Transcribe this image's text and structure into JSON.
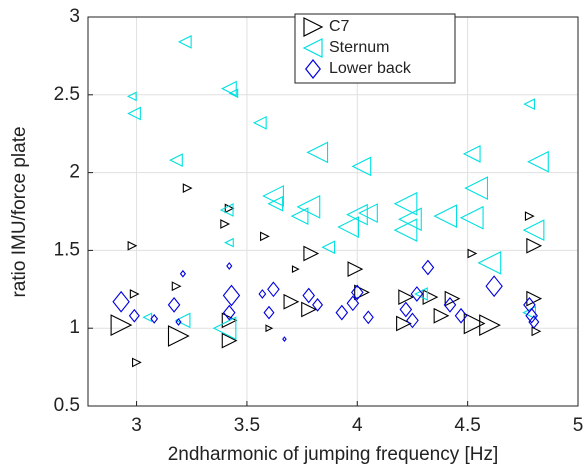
{
  "chart_data": {
    "type": "scatter",
    "xlabel": "2ndharmonic of jumping frequency  [Hz]",
    "ylabel": "ratio IMU/force plate",
    "xlim": [
      2.78,
      5
    ],
    "ylim": [
      0.5,
      3
    ],
    "xticks": [
      3,
      3.5,
      4,
      4.5,
      5
    ],
    "yticks": [
      0.5,
      1,
      1.5,
      2,
      2.5,
      3
    ],
    "grid": true,
    "legend": "top",
    "series": [
      {
        "name": "C7",
        "color": "#000000",
        "marker": "triangle-right",
        "x": [
          2.93,
          2.98,
          2.99,
          3.0,
          3.19,
          3.23,
          3.18,
          3.4,
          3.42,
          3.42,
          3.42,
          3.58,
          3.6,
          3.7,
          3.72,
          3.79,
          3.78,
          3.99,
          4.02,
          4.21,
          4.22,
          4.33,
          4.38,
          4.43,
          4.52,
          4.53,
          4.6,
          4.78,
          4.8,
          4.8,
          4.81
        ],
        "values": [
          1.02,
          1.53,
          1.22,
          0.78,
          0.95,
          1.9,
          1.27,
          1.67,
          1.77,
          0.92,
          1.05,
          1.59,
          1.0,
          1.17,
          1.38,
          1.48,
          1.12,
          1.38,
          1.23,
          1.03,
          1.2,
          1.2,
          1.08,
          1.19,
          1.48,
          1.03,
          1.02,
          1.72,
          1.53,
          1.19,
          0.98
        ],
        "sizes": [
          10,
          4,
          4,
          4,
          10,
          4,
          4,
          4,
          4,
          7,
          7,
          4,
          3,
          7,
          3,
          7,
          7,
          7,
          7,
          7,
          7,
          7,
          7,
          7,
          4,
          10,
          10,
          4,
          7,
          7,
          4
        ]
      },
      {
        "name": "Sternum",
        "color": "#00e0e0",
        "marker": "triangle-left",
        "x": [
          2.98,
          2.99,
          3.05,
          3.18,
          3.22,
          3.21,
          3.42,
          3.44,
          3.41,
          3.42,
          3.4,
          3.56,
          3.62,
          3.63,
          3.74,
          3.78,
          3.82,
          3.87,
          3.96,
          4.02,
          4.0,
          4.05,
          4.22,
          4.24,
          4.22,
          4.29,
          4.4,
          4.52,
          4.54,
          4.52,
          4.6,
          4.78,
          4.82,
          4.8,
          4.78
        ],
        "values": [
          2.49,
          2.38,
          1.07,
          2.08,
          2.84,
          1.05,
          2.54,
          2.51,
          1.76,
          1.55,
          1.0,
          2.32,
          1.85,
          1.8,
          1.72,
          1.78,
          2.13,
          1.52,
          1.65,
          2.04,
          1.73,
          1.74,
          1.8,
          1.7,
          1.63,
          1.22,
          1.72,
          1.71,
          1.9,
          2.12,
          1.42,
          2.44,
          2.07,
          1.63,
          1.1
        ],
        "sizes": [
          4,
          6,
          4,
          6,
          6,
          7,
          7,
          4,
          6,
          4,
          11,
          6,
          10,
          7,
          8,
          11,
          10,
          6,
          10,
          9,
          10,
          9,
          11,
          11,
          11,
          6,
          11,
          11,
          11,
          8,
          11,
          5,
          10,
          10,
          6
        ]
      },
      {
        "name": "Lower back",
        "color": "#0000e0",
        "marker": "diamond",
        "x": [
          2.93,
          2.99,
          3.08,
          3.17,
          3.19,
          3.21,
          3.42,
          3.43,
          3.42,
          3.57,
          3.62,
          3.6,
          3.67,
          3.78,
          3.82,
          3.93,
          4.0,
          3.98,
          4.05,
          4.22,
          4.25,
          4.27,
          4.32,
          4.42,
          4.47,
          4.62,
          4.79,
          4.8,
          4.78
        ],
        "values": [
          1.17,
          1.08,
          1.06,
          1.15,
          1.04,
          1.35,
          1.4,
          1.21,
          1.1,
          1.22,
          1.25,
          1.1,
          0.93,
          1.21,
          1.15,
          1.1,
          1.23,
          1.16,
          1.07,
          1.12,
          1.05,
          1.22,
          1.39,
          1.15,
          1.08,
          1.27,
          1.08,
          1.04,
          1.15
        ],
        "sizes": [
          10,
          6,
          4,
          7,
          3,
          3,
          3,
          10,
          7,
          4,
          7,
          6,
          2,
          7,
          6,
          7,
          7,
          7,
          6,
          7,
          7,
          7,
          7,
          7,
          7,
          10,
          7,
          6,
          7
        ]
      }
    ]
  }
}
